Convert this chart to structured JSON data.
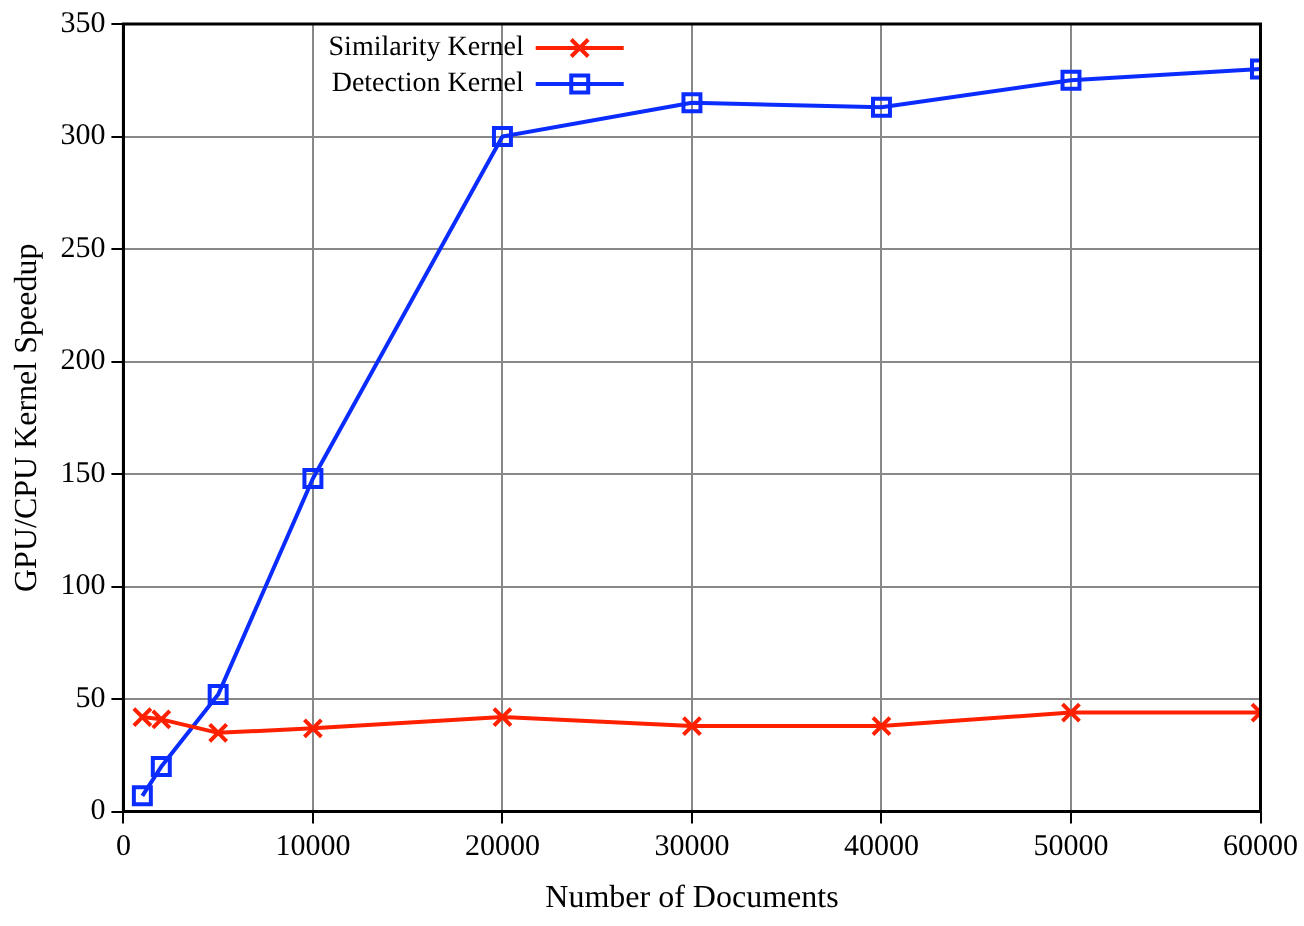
{
  "chart_data": {
    "type": "line",
    "xlabel": "Number of Documents",
    "ylabel": "GPU/CPU Kernel Speedup",
    "x": [
      1000,
      2000,
      5000,
      10000,
      20000,
      30000,
      40000,
      50000,
      60000
    ],
    "series": [
      {
        "name": "Similarity Kernel",
        "color": "#ff2000",
        "marker": "cross",
        "values": [
          42,
          41,
          35,
          37,
          42,
          38,
          38,
          44,
          44
        ]
      },
      {
        "name": "Detection Kernel",
        "color": "#0a2cff",
        "marker": "square",
        "values": [
          7,
          20,
          52,
          148,
          300,
          315,
          313,
          325,
          330
        ]
      }
    ],
    "xlim": [
      0,
      60000
    ],
    "xticks": [
      0,
      10000,
      20000,
      30000,
      40000,
      50000,
      60000
    ],
    "ylim": [
      0,
      350
    ],
    "yticks": [
      0,
      50,
      100,
      150,
      200,
      250,
      300,
      350
    ],
    "grid": true,
    "legend": "top left",
    "line_style": "solid"
  }
}
